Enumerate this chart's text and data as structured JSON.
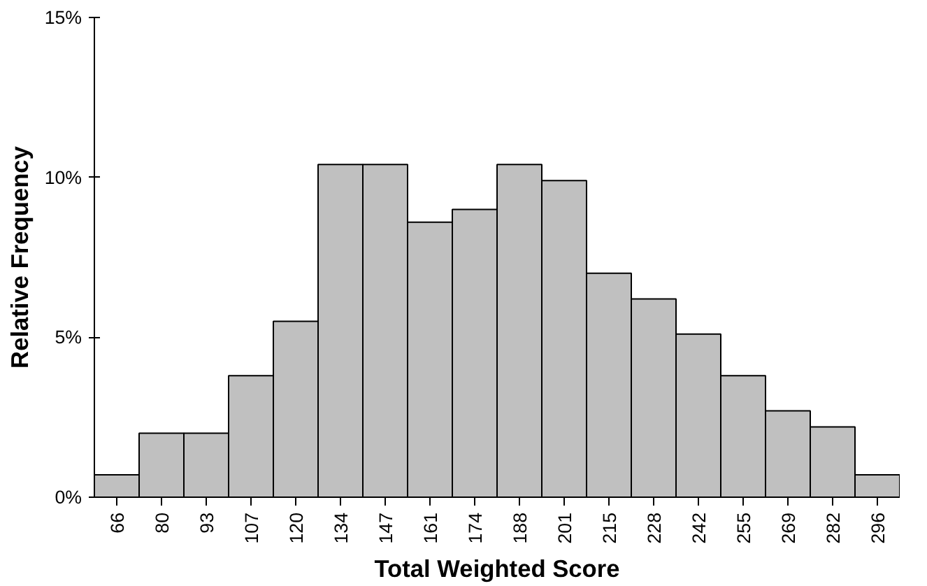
{
  "chart_data": {
    "type": "bar",
    "xlabel": "Total Weighted Score",
    "ylabel": "Relative Frequency",
    "categories": [
      "66",
      "80",
      "93",
      "107",
      "120",
      "134",
      "147",
      "161",
      "174",
      "188",
      "201",
      "215",
      "228",
      "242",
      "255",
      "269",
      "282",
      "296"
    ],
    "values": [
      0.7,
      2.0,
      2.0,
      3.8,
      5.5,
      10.4,
      10.4,
      8.6,
      9.0,
      10.4,
      9.9,
      7.0,
      6.2,
      5.1,
      3.8,
      2.7,
      2.2,
      0.7
    ],
    "color": "#c0c0c0",
    "ylim": [
      0,
      15
    ],
    "yticks": [
      {
        "value": 0,
        "label": "0%"
      },
      {
        "value": 5,
        "label": "5%"
      },
      {
        "value": 10,
        "label": "10%"
      },
      {
        "value": 15,
        "label": "15%"
      }
    ],
    "grid": false
  }
}
